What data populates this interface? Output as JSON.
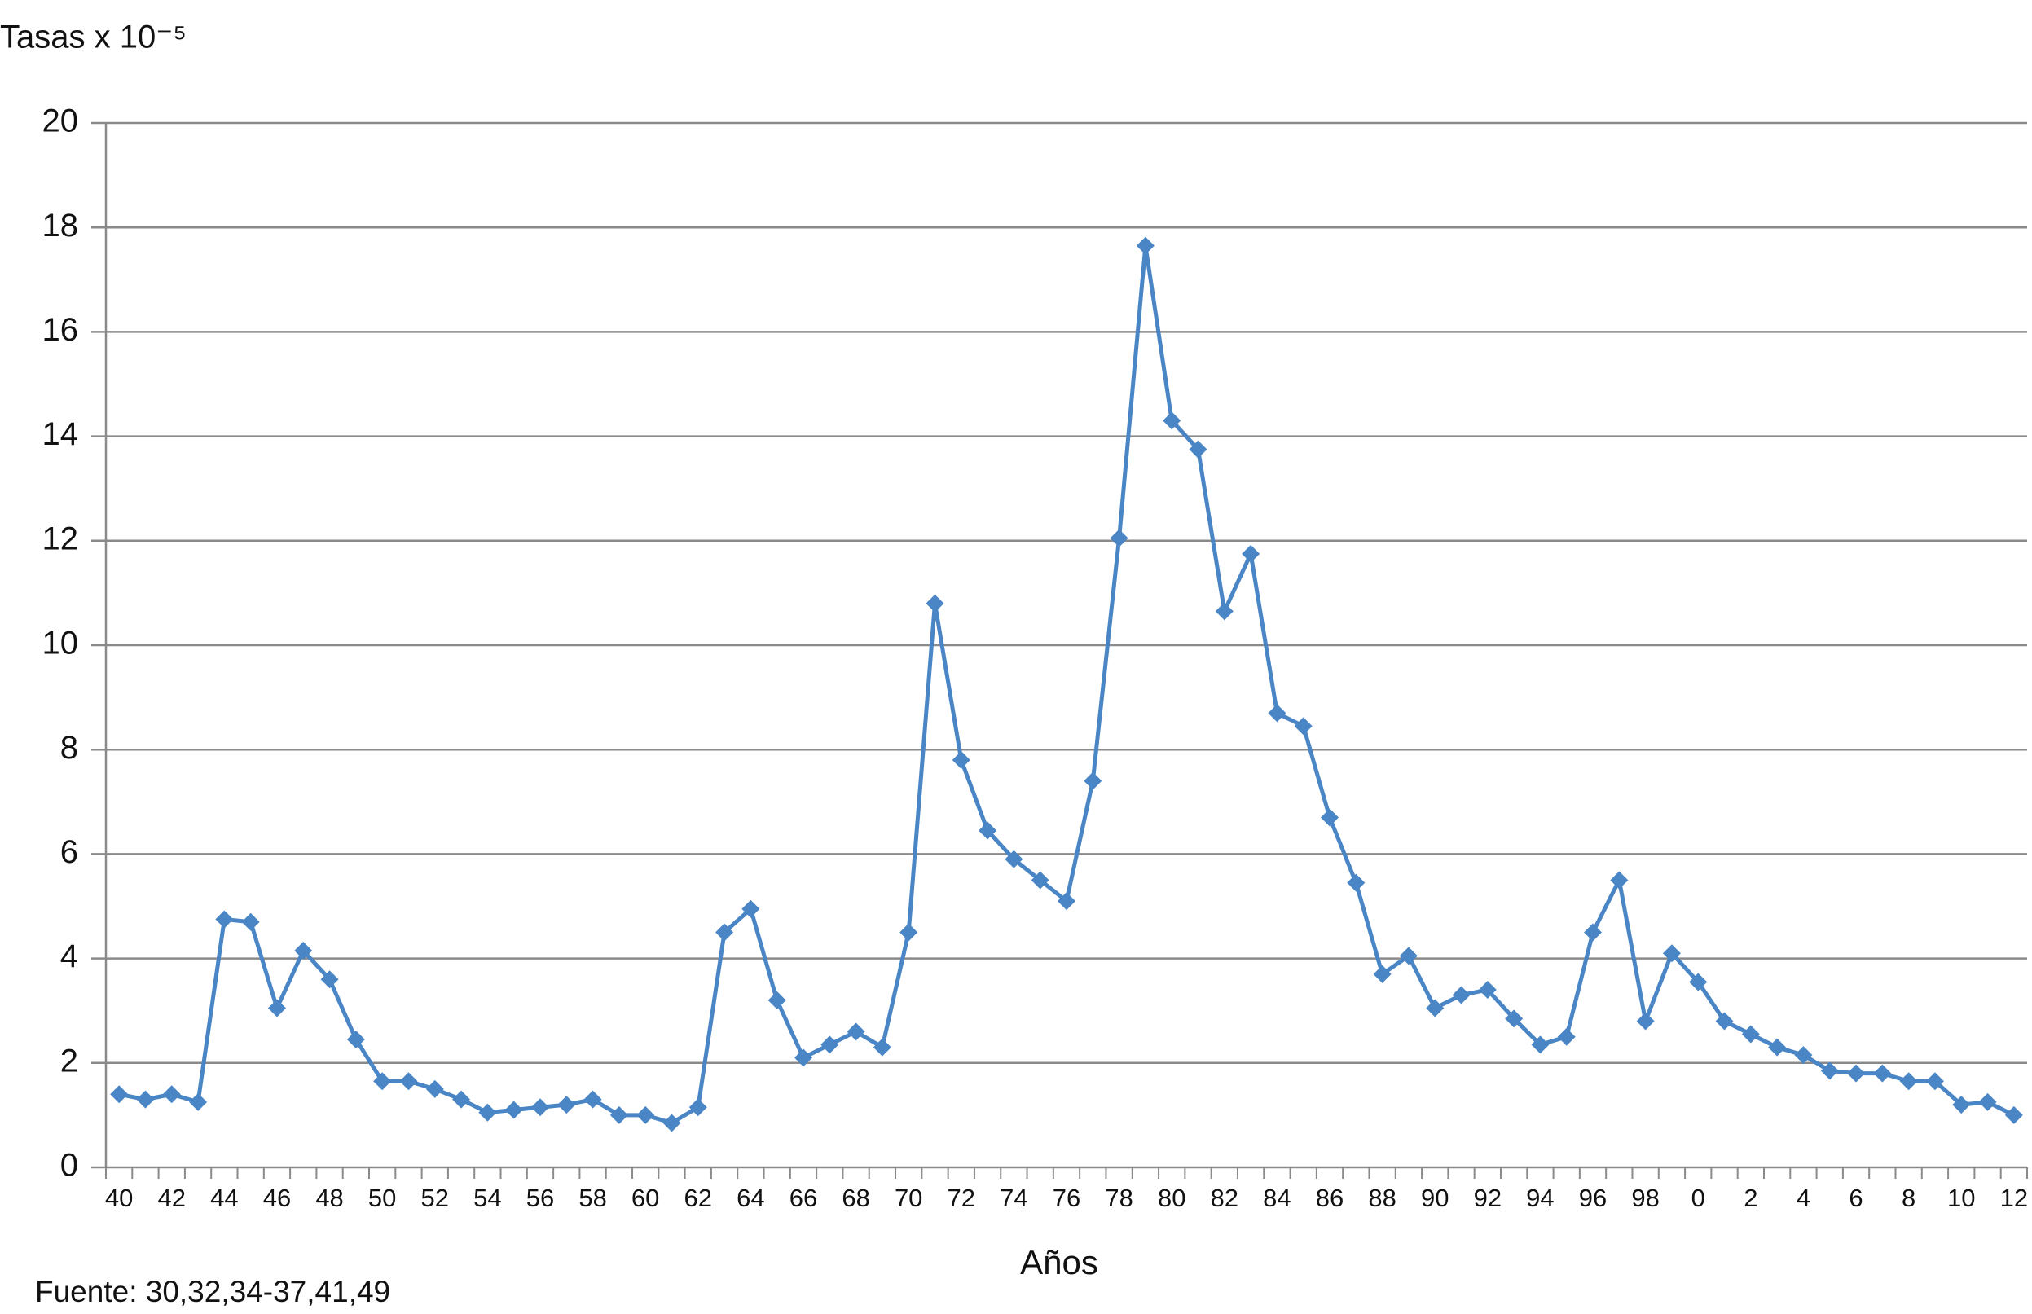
{
  "chart_data": {
    "type": "line",
    "ylabel": "Tasas x 10⁻⁵",
    "xlabel": "Años",
    "source": "Fuente: 30,32,34-37,41,49",
    "categories": [
      "40",
      null,
      "42",
      null,
      "44",
      null,
      "46",
      null,
      "48",
      null,
      "50",
      null,
      "52",
      null,
      "54",
      null,
      "56",
      null,
      "58",
      null,
      "60",
      null,
      "62",
      null,
      "64",
      null,
      "66",
      null,
      "68",
      null,
      "70",
      null,
      "72",
      null,
      "74",
      null,
      "76",
      null,
      "78",
      null,
      "80",
      null,
      "82",
      null,
      "84",
      null,
      "86",
      null,
      "88",
      null,
      "90",
      null,
      "92",
      null,
      "94",
      null,
      "96",
      null,
      "98",
      null,
      "0",
      null,
      "2",
      null,
      "4",
      null,
      "6",
      null,
      "8",
      null,
      "10",
      null,
      "12"
    ],
    "series": [
      {
        "color": "#4a86c5",
        "values": [
          1.4,
          1.3,
          1.4,
          1.25,
          4.75,
          4.7,
          3.05,
          4.15,
          3.6,
          2.45,
          1.65,
          1.65,
          1.5,
          1.3,
          1.05,
          1.1,
          1.15,
          1.2,
          1.3,
          1.0,
          1.0,
          0.85,
          1.15,
          4.5,
          4.95,
          3.2,
          2.1,
          2.35,
          2.6,
          2.3,
          4.5,
          10.8,
          7.8,
          6.45,
          5.9,
          5.5,
          5.1,
          7.4,
          12.05,
          17.65,
          14.3,
          13.75,
          10.65,
          11.75,
          8.7,
          8.45,
          6.7,
          5.45,
          3.7,
          4.05,
          3.05,
          3.3,
          3.4,
          2.85,
          2.35,
          2.5,
          4.5,
          5.5,
          2.8,
          4.1,
          3.55,
          2.8,
          2.55,
          2.3,
          2.15,
          1.85,
          1.8,
          1.8,
          1.65,
          1.65,
          1.2,
          1.25,
          1.0
        ]
      }
    ],
    "ylim": [
      0,
      20
    ],
    "yticks": [
      0,
      2,
      4,
      6,
      8,
      10,
      12,
      14,
      16,
      18,
      20
    ],
    "grid": true
  }
}
